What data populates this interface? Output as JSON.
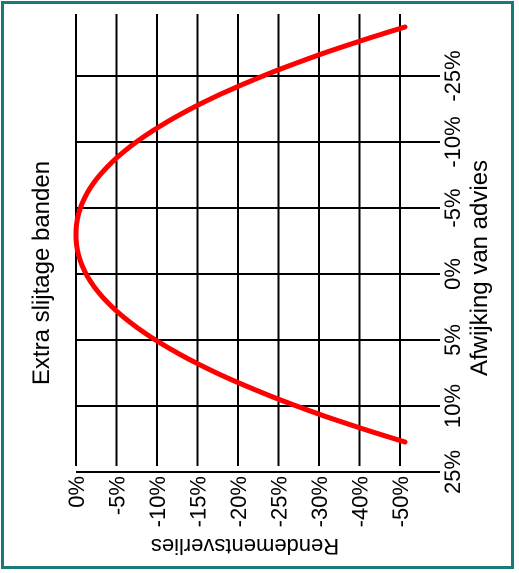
{
  "chart_data": {
    "type": "line",
    "orientation": "rotated-90",
    "title": "",
    "xlabel": "Afwijking van advies",
    "ylabel": "Rendementsverlies",
    "side_label": "Extra slijtage banden",
    "x_categories": [
      "-25%",
      "-10%",
      "-5%",
      "0%",
      "5%",
      "10%",
      "25%"
    ],
    "y_categories": [
      "0%",
      "-5%",
      "-10%",
      "-15%",
      "-20%",
      "-25%",
      "-30%",
      "-40%",
      "-50%"
    ],
    "series": [
      {
        "color": "#ff0000",
        "x": [
          "-25%",
          "-10%",
          "-5%",
          "0%",
          "5%",
          "10%",
          "25%"
        ],
        "y_index": [
          9.3,
          4.8,
          1.6,
          0,
          1.6,
          4.8,
          9.3
        ]
      }
    ],
    "grid": true,
    "colors": {
      "frame": "#1a7a7a",
      "curve": "#ff0000",
      "grid": "#000000"
    }
  }
}
